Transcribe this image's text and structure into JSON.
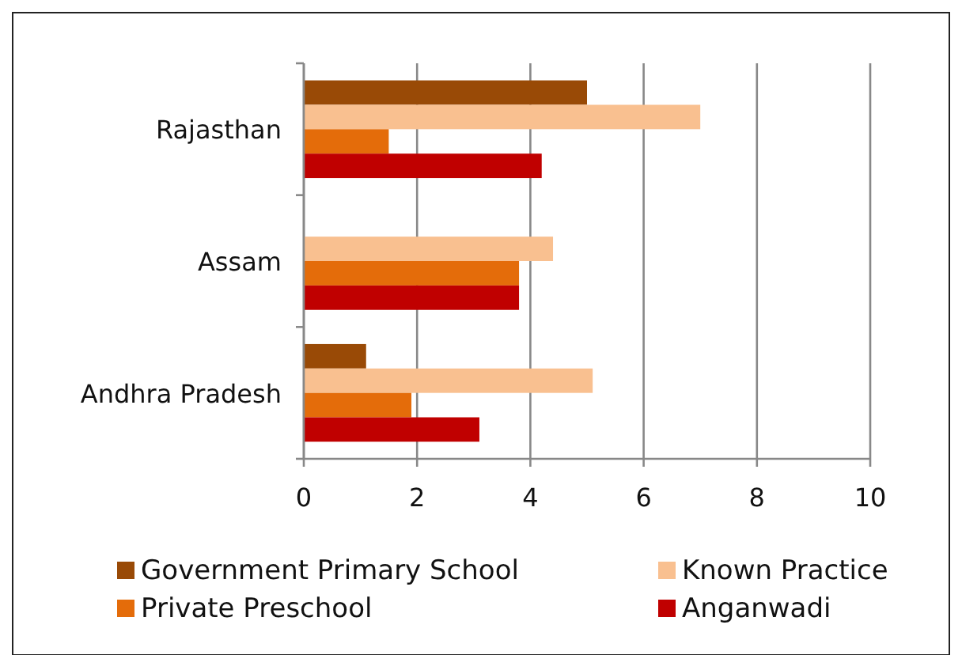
{
  "chart_data": {
    "type": "bar",
    "orientation": "horizontal",
    "categories": [
      "Rajasthan",
      "Assam",
      "Andhra Pradesh"
    ],
    "series": [
      {
        "name": "Government Primary School",
        "color": "#994a06",
        "values": [
          5.0,
          0,
          1.1
        ]
      },
      {
        "name": "Known Practice",
        "color": "#f9c090",
        "values": [
          7.0,
          4.4,
          5.1
        ]
      },
      {
        "name": "Private Preschool",
        "color": "#e46c0a",
        "values": [
          1.5,
          3.8,
          1.9
        ]
      },
      {
        "name": "Anganwadi",
        "color": "#c00000",
        "values": [
          4.2,
          3.8,
          3.1
        ]
      }
    ],
    "xlim": [
      0,
      10
    ],
    "xticks": [
      0,
      2,
      4,
      6,
      8,
      10
    ],
    "grid": "x",
    "legend": "bottom"
  }
}
